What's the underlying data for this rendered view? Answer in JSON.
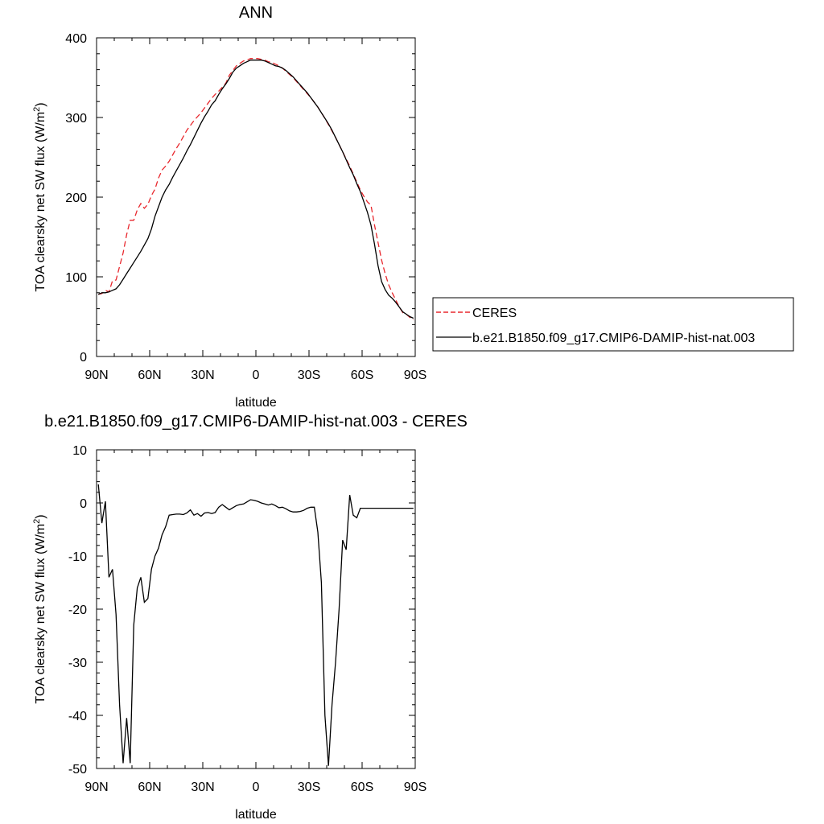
{
  "chart_data": [
    {
      "type": "line",
      "title": "ANN",
      "xlabel": "latitude",
      "ylabel_main": "TOA clearsky net SW flux (W/m",
      "ylabel_sup": "2",
      "ylabel_tail": ")",
      "xlim": [
        90,
        -90
      ],
      "ylim": [
        0,
        400
      ],
      "xticks": [
        90,
        60,
        30,
        0,
        -30,
        -60,
        -90
      ],
      "xtick_labels": [
        "90N",
        "60N",
        "30N",
        "0",
        "30S",
        "60S",
        "90S"
      ],
      "yticks": [
        0,
        100,
        200,
        300,
        400
      ],
      "ytick_labels": [
        "0",
        "100",
        "200",
        "300",
        "400"
      ],
      "legend": {
        "placement": "right",
        "entries": [
          "CERES",
          "b.e21.B1850.f09_g17.CMIP6-DAMIP-hist-nat.003"
        ]
      },
      "series": [
        {
          "name": "CERES",
          "color": "#e8282e",
          "dash": "dashed",
          "x": [
            89,
            87,
            85,
            83,
            81,
            79,
            77,
            75,
            73,
            71,
            69,
            67,
            65,
            63,
            61,
            59,
            57,
            55,
            53,
            51,
            49,
            47,
            45,
            43,
            41,
            39,
            37,
            35,
            33,
            31,
            29,
            27,
            25,
            23,
            21,
            19,
            17,
            15,
            13,
            11,
            9,
            7,
            5,
            3,
            1,
            -1,
            -3,
            -5,
            -7,
            -9,
            -11,
            -13,
            -15,
            -17,
            -19,
            -21,
            -23,
            -25,
            -27,
            -29,
            -31,
            -33,
            -35,
            -37,
            -39,
            -41,
            -43,
            -45,
            -47,
            -49,
            -51,
            -53,
            -55,
            -57,
            -59,
            -61,
            -63,
            -65,
            -67,
            -69,
            -71,
            -73,
            -75,
            -77,
            -79,
            -81,
            -83,
            -85,
            -87,
            -89
          ],
          "y": [
            78,
            79,
            83,
            81,
            95,
            96,
            113,
            130,
            153,
            171,
            171,
            184,
            192,
            186,
            191,
            202,
            210,
            224,
            234,
            239,
            245,
            253,
            261,
            268,
            276,
            284,
            290,
            296,
            301,
            306,
            312,
            318,
            324,
            329,
            333,
            338,
            343,
            353,
            359,
            365,
            368,
            371,
            372,
            374,
            374,
            374,
            373,
            372,
            370,
            369,
            367,
            365,
            362,
            358,
            354,
            350,
            345,
            340,
            335,
            330,
            325,
            319,
            313,
            306,
            299,
            291,
            283,
            275,
            266,
            257,
            248,
            239,
            229,
            219,
            209,
            201,
            194,
            190,
            165,
            143,
            121,
            104,
            90,
            80,
            71,
            62,
            55,
            53,
            49,
            46
          ]
        },
        {
          "name": "b.e21.B1850.f09_g17.CMIP6-DAMIP-hist-nat.003",
          "color": "#000000",
          "dash": "solid",
          "x": [
            89,
            87,
            85,
            83,
            81,
            79,
            77,
            75,
            73,
            71,
            69,
            67,
            65,
            63,
            61,
            59,
            57,
            55,
            53,
            51,
            49,
            47,
            45,
            43,
            41,
            39,
            37,
            35,
            33,
            31,
            29,
            27,
            25,
            23,
            21,
            19,
            17,
            15,
            13,
            11,
            9,
            7,
            5,
            3,
            1,
            -1,
            -3,
            -5,
            -7,
            -9,
            -11,
            -13,
            -15,
            -17,
            -19,
            -21,
            -23,
            -25,
            -27,
            -29,
            -31,
            -33,
            -35,
            -37,
            -39,
            -41,
            -43,
            -45,
            -47,
            -49,
            -51,
            -53,
            -55,
            -57,
            -59,
            -61,
            -63,
            -65,
            -67,
            -69,
            -71,
            -73,
            -75,
            -77,
            -79,
            -81,
            -83,
            -85,
            -87,
            -89
          ],
          "y": [
            78,
            80,
            80,
            81,
            83,
            85,
            90,
            97,
            104,
            111,
            118,
            125,
            132,
            140,
            148,
            160,
            176,
            188,
            200,
            209,
            216,
            225,
            233,
            241,
            249,
            258,
            266,
            275,
            284,
            293,
            301,
            308,
            316,
            321,
            329,
            336,
            342,
            349,
            357,
            362,
            365,
            368,
            370,
            372,
            372,
            372,
            372,
            371,
            369,
            367,
            365,
            364,
            362,
            359,
            355,
            351,
            346,
            341,
            336,
            331,
            325,
            319,
            313,
            306,
            299,
            292,
            284,
            275,
            266,
            257,
            247,
            237,
            228,
            217,
            207,
            194,
            181,
            165,
            141,
            114,
            94,
            84,
            77,
            73,
            68,
            62,
            56,
            53,
            50,
            48
          ]
        }
      ]
    },
    {
      "type": "line",
      "title": "b.e21.B1850.f09_g17.CMIP6-DAMIP-hist-nat.003 - CERES",
      "xlabel": "latitude",
      "ylabel_main": "TOA clearsky net SW flux (W/m",
      "ylabel_sup": "2",
      "ylabel_tail": ")",
      "xlim": [
        90,
        -90
      ],
      "ylim": [
        -50,
        10
      ],
      "xticks": [
        90,
        60,
        30,
        0,
        -30,
        -60,
        -90
      ],
      "xtick_labels": [
        "90N",
        "60N",
        "30N",
        "0",
        "30S",
        "60S",
        "90S"
      ],
      "yticks": [
        10,
        0,
        -10,
        -20,
        -30,
        -40,
        -50
      ],
      "ytick_labels": [
        "10",
        "0",
        "-10",
        "-20",
        "-30",
        "-40",
        "-50"
      ],
      "series": [
        {
          "color": "#000000",
          "dash": "solid",
          "x": [
            89,
            87,
            85,
            83,
            81,
            79,
            77,
            75,
            73,
            71,
            69,
            67,
            65,
            63,
            61,
            59,
            57,
            55,
            53,
            51,
            49,
            47,
            45,
            43,
            41,
            39,
            37,
            35,
            33,
            31,
            29,
            27,
            25,
            23,
            21,
            19,
            17,
            15,
            13,
            11,
            9,
            7,
            5,
            3,
            1,
            -1,
            -3,
            -5,
            -7,
            -9,
            -11,
            -13,
            -15,
            -17,
            -19,
            -21,
            -23,
            -25,
            -27,
            -29,
            -31,
            -33,
            -35,
            -37,
            -39,
            -41,
            -43,
            -45,
            -47,
            -49,
            -51,
            -53,
            -55,
            -57,
            -59,
            -61,
            -63,
            -65,
            -67,
            -69,
            -71,
            -73,
            -75,
            -77,
            -79,
            -81,
            -83,
            -85,
            -87,
            -89
          ],
          "y": [
            3.5,
            -3.8,
            0.3,
            -14,
            -12.5,
            -21,
            -38,
            -49,
            -40.5,
            -49,
            -23,
            -16,
            -14,
            -18.7,
            -18,
            -12.5,
            -10,
            -8.5,
            -6,
            -4.5,
            -2.3,
            -2.2,
            -2.1,
            -2.1,
            -2.2,
            -1.9,
            -1.3,
            -2.3,
            -2.0,
            -2.5,
            -1.9,
            -1.8,
            -2.0,
            -1.8,
            -0.8,
            -0.3,
            -0.8,
            -1.3,
            -0.9,
            -0.5,
            -0.3,
            -0.2,
            0.2,
            0.6,
            0.5,
            0.3,
            0.0,
            -0.2,
            -0.4,
            -0.2,
            -0.5,
            -0.9,
            -0.8,
            -1.1,
            -1.5,
            -1.7,
            -1.7,
            -1.6,
            -1.4,
            -1.0,
            -0.8,
            -0.8,
            -5.5,
            -15,
            -40,
            -49.5,
            -38,
            -30,
            -20,
            -7,
            -8.8,
            1.5,
            -2.3,
            -2.8,
            -1.0,
            -1.0,
            -1.0,
            -1.0,
            -1.0,
            -1.0,
            -1.0,
            -1.0,
            -1.0,
            -1.0,
            -1.0,
            -1.0,
            -1.0,
            -1.0,
            -1.0,
            -1.0
          ]
        }
      ]
    }
  ]
}
